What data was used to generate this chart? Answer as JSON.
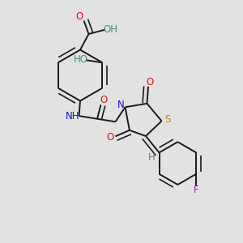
{
  "background_color": "#e2e2e2",
  "bond_color": "#1a1a1a",
  "bond_width": 1.4,
  "dbo": 0.018,
  "figsize": [
    3.0,
    3.0
  ],
  "dpi": 100,
  "labels": {
    "O_cooh": {
      "text": "O",
      "color": "#dd1111"
    },
    "OH_cooh": {
      "text": "OH",
      "color": "#3d8c8c"
    },
    "HO": {
      "text": "HO",
      "color": "#3d8c8c"
    },
    "NH": {
      "text": "NH",
      "color": "#1111cc"
    },
    "O_amide": {
      "text": "O",
      "color": "#dd1111"
    },
    "N_thia": {
      "text": "N",
      "color": "#1111cc"
    },
    "O_c2": {
      "text": "O",
      "color": "#dd1111"
    },
    "S_thia": {
      "text": "S",
      "color": "#b89000"
    },
    "O_c4": {
      "text": "O",
      "color": "#dd1111"
    },
    "H_vinyl": {
      "text": "H",
      "color": "#3d8c8c"
    },
    "F": {
      "text": "F",
      "color": "#cc00cc"
    }
  }
}
